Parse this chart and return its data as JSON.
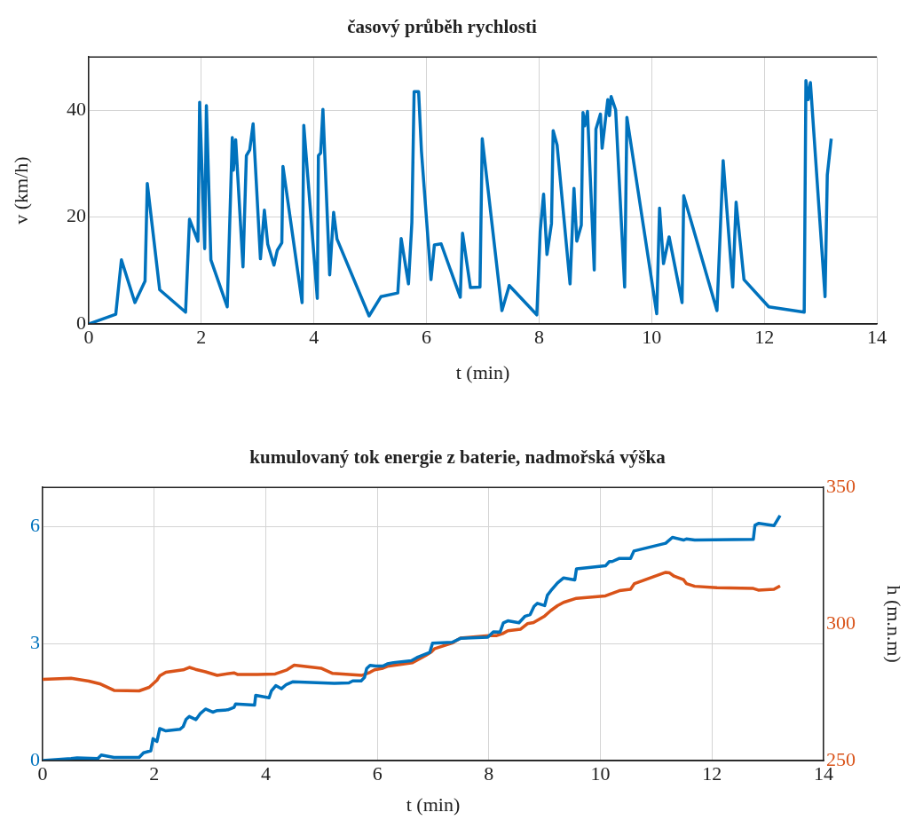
{
  "chart_data": [
    {
      "type": "line",
      "title": "časový průběh rychlosti",
      "xlabel": "t (min)",
      "ylabel": "v (km/h)",
      "xlim": [
        0,
        14
      ],
      "xticks": [
        0,
        2,
        4,
        6,
        8,
        10,
        12,
        14
      ],
      "ylim": [
        0,
        50
      ],
      "yticks": [
        0,
        20,
        40
      ],
      "grid": true,
      "series": [
        {
          "color": "#0072bd",
          "x": [
            0,
            0.48,
            0.58,
            0.82,
            1.0,
            1.04,
            1.26,
            1.72,
            1.79,
            1.94,
            1.97,
            2.06,
            2.09,
            2.17,
            2.46,
            2.55,
            2.57,
            2.61,
            2.74,
            2.8,
            2.86,
            2.92,
            3.05,
            3.12,
            3.18,
            3.29,
            3.35,
            3.43,
            3.45,
            3.79,
            3.82,
            4.06,
            4.08,
            4.12,
            4.16,
            4.28,
            4.35,
            4.41,
            4.98,
            5.19,
            5.49,
            5.55,
            5.68,
            5.74,
            5.78,
            5.86,
            5.91,
            6.08,
            6.14,
            6.26,
            6.6,
            6.64,
            6.78,
            6.95,
            6.99,
            7.34,
            7.47,
            7.96,
            8.02,
            8.08,
            8.14,
            8.22,
            8.25,
            8.32,
            8.55,
            8.62,
            8.67,
            8.75,
            8.78,
            8.81,
            8.86,
            8.98,
            9.01,
            9.09,
            9.12,
            9.16,
            9.22,
            9.25,
            9.28,
            9.36,
            9.52,
            9.56,
            10.09,
            10.14,
            10.21,
            10.31,
            10.54,
            10.57,
            11.16,
            11.27,
            11.44,
            11.5,
            11.64,
            12.08,
            12.71,
            12.74,
            12.78,
            12.82,
            13.08,
            13.12,
            13.19
          ],
          "values": [
            0,
            1.8,
            12,
            4,
            8,
            26.3,
            6.4,
            2.2,
            19.6,
            15.5,
            41.5,
            14.1,
            40.9,
            12,
            3.2,
            34.9,
            28.8,
            34.5,
            10.7,
            31.5,
            32.6,
            37.5,
            12.2,
            21.3,
            14.9,
            11,
            13.8,
            15.2,
            29.5,
            4,
            37.2,
            4.8,
            31.5,
            32,
            40.2,
            9.2,
            20.9,
            15.9,
            1.5,
            5.1,
            5.8,
            16,
            7.5,
            19,
            43.5,
            43.5,
            32.4,
            8.3,
            14.8,
            15,
            5,
            17,
            6.8,
            6.9,
            34.7,
            2.5,
            7.2,
            1.7,
            17.4,
            24.3,
            13,
            18.8,
            36.2,
            33.5,
            7.5,
            25.4,
            15.5,
            18.5,
            39.6,
            37.1,
            39.8,
            10.1,
            36.5,
            39.3,
            32.9,
            36.5,
            42,
            39,
            42.6,
            40.1,
            6.9,
            38.7,
            1.9,
            21.7,
            11.3,
            16.3,
            4,
            24,
            2.5,
            30.6,
            6.9,
            22.8,
            8.3,
            3.2,
            2.2,
            45.6,
            42,
            45.2,
            5.1,
            27.9,
            34.7
          ]
        }
      ]
    },
    {
      "type": "line",
      "title": "kumulovaný tok energie z baterie, nadmořská výška",
      "xlabel": "t (min)",
      "y2label": "h (m.n.m)",
      "xlim": [
        0,
        14
      ],
      "xticks": [
        0,
        2,
        4,
        6,
        8,
        10,
        12,
        14
      ],
      "ylim": [
        0,
        7
      ],
      "yticks": [
        0,
        3,
        6
      ],
      "y2lim": [
        250,
        350
      ],
      "y2ticks": [
        250,
        300,
        350
      ],
      "grid": true,
      "series": [
        {
          "color": "#0072bd",
          "x": [
            0,
            0.51,
            0.62,
            0.99,
            1.05,
            1.28,
            1.73,
            1.81,
            1.94,
            1.98,
            2.05,
            2.1,
            2.21,
            2.46,
            2.52,
            2.57,
            2.63,
            2.75,
            2.83,
            2.92,
            3.05,
            3.13,
            3.32,
            3.43,
            3.46,
            3.8,
            3.82,
            4.06,
            4.1,
            4.18,
            4.28,
            4.37,
            4.49,
            5.23,
            5.49,
            5.56,
            5.71,
            5.77,
            5.81,
            5.87,
            5.97,
            6.1,
            6.18,
            6.29,
            6.61,
            6.71,
            6.87,
            6.94,
            6.99,
            7.34,
            7.49,
            7.98,
            8.08,
            8.2,
            8.26,
            8.34,
            8.54,
            8.65,
            8.74,
            8.81,
            8.87,
            9.0,
            9.05,
            9.11,
            9.23,
            9.34,
            9.54,
            9.57,
            10.09,
            10.16,
            10.21,
            10.34,
            10.54,
            10.6,
            11.17,
            11.29,
            11.49,
            11.54,
            11.69,
            12.74,
            12.77,
            12.84,
            13.11,
            13.22
          ],
          "values": [
            0,
            0.05,
            0.07,
            0.05,
            0.14,
            0.08,
            0.08,
            0.2,
            0.25,
            0.56,
            0.49,
            0.82,
            0.76,
            0.8,
            0.87,
            1.05,
            1.13,
            1.05,
            1.21,
            1.32,
            1.24,
            1.28,
            1.3,
            1.36,
            1.45,
            1.42,
            1.67,
            1.61,
            1.78,
            1.92,
            1.84,
            1.95,
            2.02,
            1.98,
            1.99,
            2.04,
            2.04,
            2.13,
            2.36,
            2.44,
            2.42,
            2.42,
            2.48,
            2.51,
            2.56,
            2.64,
            2.73,
            2.77,
            3.01,
            3.03,
            3.13,
            3.16,
            3.3,
            3.29,
            3.53,
            3.58,
            3.53,
            3.7,
            3.74,
            3.95,
            4.03,
            3.97,
            4.24,
            4.35,
            4.55,
            4.68,
            4.63,
            4.91,
            4.99,
            5.1,
            5.1,
            5.18,
            5.18,
            5.37,
            5.57,
            5.72,
            5.65,
            5.68,
            5.65,
            5.67,
            6.03,
            6.08,
            6.02,
            6.28
          ]
        },
        {
          "color": "#d95319",
          "axis": "y2",
          "x": [
            0,
            0.51,
            0.83,
            1.04,
            1.28,
            1.73,
            1.91,
            2.05,
            2.1,
            2.21,
            2.52,
            2.63,
            2.74,
            2.92,
            3.13,
            3.43,
            3.5,
            3.85,
            4.17,
            4.38,
            4.51,
            4.99,
            5.2,
            5.73,
            5.87,
            5.95,
            6.1,
            6.18,
            6.63,
            6.87,
            6.97,
            7.03,
            7.34,
            7.49,
            8.0,
            8.13,
            8.25,
            8.34,
            8.57,
            8.69,
            8.8,
            9.0,
            9.11,
            9.23,
            9.34,
            9.57,
            10.09,
            10.34,
            10.54,
            10.61,
            11.17,
            11.24,
            11.32,
            11.49,
            11.54,
            11.69,
            12.09,
            12.74,
            12.83,
            13.11,
            13.22
          ],
          "values": [
            279.7,
            280.1,
            279.1,
            278,
            275.7,
            275.5,
            276.8,
            279.4,
            281,
            282.3,
            283.2,
            284.1,
            283.4,
            282.5,
            281.2,
            282.1,
            281.5,
            281.5,
            281.7,
            283.2,
            284.9,
            283.8,
            281.9,
            281.2,
            282.3,
            283.2,
            283.8,
            284.5,
            285.8,
            288.5,
            289.8,
            291,
            293,
            294.8,
            295.7,
            295.7,
            296.5,
            297.5,
            298.1,
            300.1,
            300.5,
            302.9,
            304.9,
            306.7,
            307.9,
            309.4,
            310.3,
            312.2,
            312.7,
            314.8,
            318.9,
            318.7,
            317.5,
            316.2,
            314.8,
            313.8,
            313.3,
            313,
            312.4,
            312.7,
            313.9
          ]
        }
      ]
    }
  ]
}
